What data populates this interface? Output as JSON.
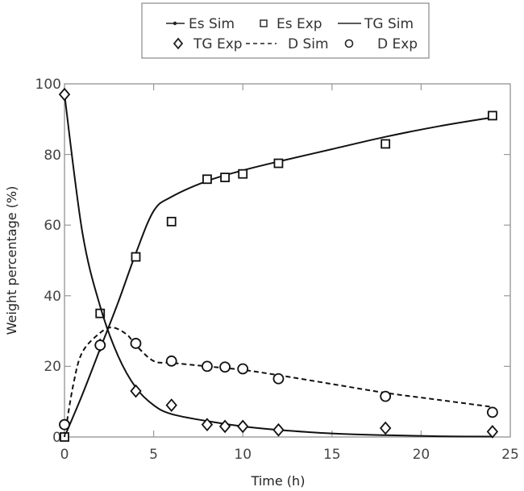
{
  "chart_data": {
    "type": "line",
    "title": "",
    "xlabel": "Time (h)",
    "ylabel": "Weight percentage (%)",
    "xlim": [
      0,
      25
    ],
    "ylim": [
      0,
      100
    ],
    "xticks": [
      0,
      5,
      10,
      15,
      20,
      25
    ],
    "yticks": [
      0,
      20,
      40,
      60,
      80,
      100
    ],
    "grid": false,
    "legend_position": "top, above plot",
    "legend": [
      "Es Sim",
      "Es Exp",
      "TG Sim",
      "TG Exp",
      "D Sim",
      "D Exp"
    ],
    "series": [
      {
        "name": "Es Sim",
        "style": "solid line",
        "x": [
          0,
          1,
          2,
          3,
          4,
          5,
          6,
          8,
          10,
          12,
          15,
          18,
          21,
          24
        ],
        "values": [
          0,
          12,
          25,
          38,
          52,
          64,
          68,
          72.5,
          75.5,
          78,
          81.5,
          85,
          88,
          90.5
        ]
      },
      {
        "name": "Es Exp",
        "style": "square markers",
        "x": [
          0,
          2,
          4,
          6,
          8,
          9,
          10,
          12,
          18,
          24
        ],
        "values": [
          0,
          35,
          51,
          61,
          73,
          73.5,
          74.5,
          77.5,
          83,
          91
        ]
      },
      {
        "name": "TG Sim",
        "style": "solid line",
        "x": [
          0,
          1,
          2,
          3,
          4,
          5,
          6,
          8,
          10,
          12,
          15,
          18,
          21,
          24
        ],
        "values": [
          97,
          58,
          37,
          23,
          14,
          9,
          6.5,
          4.5,
          3,
          2,
          1,
          0.5,
          0.2,
          0.1
        ]
      },
      {
        "name": "TG Exp",
        "style": "diamond markers",
        "x": [
          0,
          2,
          4,
          6,
          8,
          9,
          10,
          12,
          18,
          24
        ],
        "values": [
          97,
          26,
          13,
          9,
          3.5,
          3,
          3,
          2,
          2.5,
          1.5
        ]
      },
      {
        "name": "D Sim",
        "style": "dashed line",
        "x": [
          0,
          0.5,
          1,
          2,
          2.7,
          3.5,
          4,
          5,
          6,
          8,
          10,
          12,
          15,
          18,
          21,
          24
        ],
        "values": [
          0,
          15,
          24,
          29.5,
          31,
          29,
          26,
          21.5,
          21,
          20,
          19,
          17.5,
          15,
          12.5,
          10.5,
          8.5
        ]
      },
      {
        "name": "D Exp",
        "style": "circle markers",
        "x": [
          0,
          2,
          4,
          6,
          8,
          9,
          10,
          12,
          18,
          24
        ],
        "values": [
          3.5,
          26,
          26.5,
          21.5,
          20,
          19.8,
          19.3,
          16.5,
          11.5,
          7
        ]
      }
    ]
  },
  "legend": {
    "row1": {
      "a": "Es Sim",
      "b": "Es Exp",
      "c": "TG Sim"
    },
    "row2": {
      "a": "TG Exp",
      "b": "D Sim",
      "c": "D Exp"
    }
  },
  "axes": {
    "xlabel": "Time (h)",
    "ylabel": "Weight percentage (%)",
    "xticks": [
      "0",
      "5",
      "10",
      "15",
      "20",
      "25"
    ],
    "yticks": [
      "0",
      "20",
      "40",
      "60",
      "80",
      "100"
    ]
  }
}
